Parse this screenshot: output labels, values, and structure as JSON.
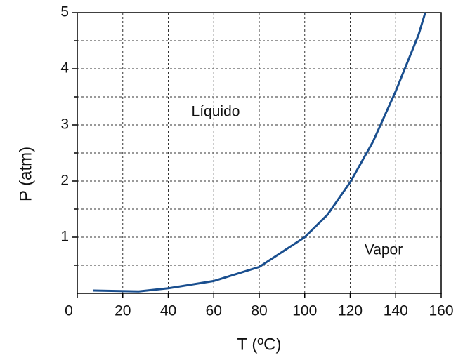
{
  "chart_data": {
    "type": "line",
    "x_label": "T (ºC)",
    "y_label": "P (atm)",
    "annotations": [
      "Líquido",
      "Vapor"
    ],
    "series": [
      {
        "color": "#1a4f8f",
        "x": [
          7,
          27,
          40,
          60,
          80,
          100,
          110,
          120,
          130,
          140,
          150,
          153
        ],
        "values": [
          0.05,
          0.035,
          0.09,
          0.22,
          0.47,
          1.0,
          1.4,
          1.98,
          2.7,
          3.6,
          4.6,
          5.0
        ]
      }
    ],
    "xlim": [
      0,
      160
    ],
    "xticks": [
      0,
      20,
      40,
      60,
      80,
      100,
      120,
      140,
      160
    ],
    "ylim": [
      0,
      5
    ],
    "yticks": [
      1,
      2,
      3,
      4,
      5
    ],
    "y_minor_ticks": [
      0.5,
      1.5,
      2.5,
      3.5,
      4.5
    ],
    "grid": true
  }
}
